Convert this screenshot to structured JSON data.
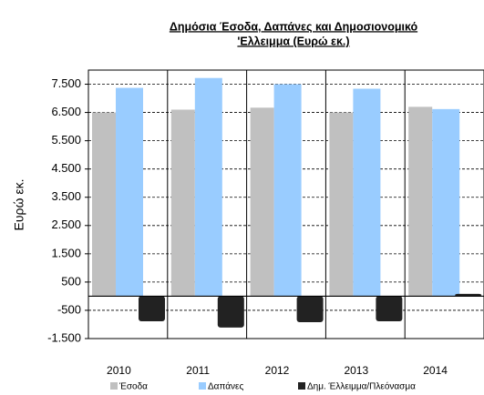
{
  "chart_data": {
    "type": "bar",
    "title": [
      "Δημόσια Έσοδα, Δαπάνες και Δημοσιονομικό",
      "'Ελλειμμα (Ευρώ εκ.)"
    ],
    "y_label": "Ευρώ εκ.",
    "categories": [
      "2010",
      "2011",
      "2012",
      "2013",
      "2014"
    ],
    "series": [
      {
        "name": "Έσοδα",
        "color": "#c0c0c0",
        "values": [
          6500,
          6600,
          6670,
          6500,
          6700
        ]
      },
      {
        "name": "Δαπάνες",
        "color": "#99ccff",
        "values": [
          7370,
          7720,
          7500,
          7340,
          6620
        ]
      },
      {
        "name": "Δημ. Έλλειμμα/Πλεόνασμα",
        "color": "#222222",
        "values": [
          -890,
          -1110,
          -920,
          -890,
          80
        ]
      }
    ],
    "ylim": [
      -1500,
      8000
    ],
    "yticks": [
      {
        "value": -1500,
        "label": "-1.500"
      },
      -500,
      500,
      {
        "value": 1500,
        "label": "1.500"
      },
      {
        "value": 2500,
        "label": "2.500"
      },
      {
        "value": 3500,
        "label": "3.500"
      },
      {
        "value": 4500,
        "label": "4.500"
      },
      {
        "value": 5500,
        "label": "5.500"
      },
      {
        "value": 6500,
        "label": "6.500"
      },
      {
        "value": 7500,
        "label": "7.500"
      }
    ],
    "grid": true
  }
}
